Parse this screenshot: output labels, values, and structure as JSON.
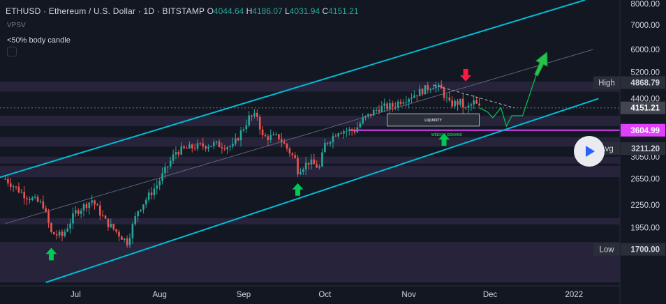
{
  "header": {
    "symbol": "ETHUSD · Ethereum / U.S. Dollar · 1D · BITSTAMP",
    "o_label": "O",
    "o_value": "4044.64",
    "h_label": "H",
    "h_value": "4186.07",
    "l_label": "L",
    "l_value": "4031.94",
    "c_label": "C",
    "c_value": "4151.21"
  },
  "indicator_sub": "VPSV",
  "indicator_name": "<50% body candle",
  "annotations": {
    "liquidity": "LIQUIDITY",
    "weekly_demand": "WEEKLY DEMAND"
  },
  "colors": {
    "background": "#131722",
    "up": "#26a69a",
    "down": "#ef5350",
    "channel": "#00bcd4",
    "magenta": "#e040fb",
    "green_arrow": "#00c853",
    "red_arrow": "#ff1744",
    "zone": "#2a2640"
  },
  "chart_data": {
    "type": "candlestick",
    "timeframe": "1D",
    "ylim": [
      1350,
      8200
    ],
    "log_scale": true,
    "price_axis": {
      "ticks": [
        "8000.00",
        "7000.00",
        "6000.00",
        "5200.00",
        "4400.00",
        "3050.00",
        "2650.00",
        "2250.00",
        "1950.00"
      ],
      "labels": [
        {
          "name": "High",
          "value": "4868.79"
        },
        {
          "name": "",
          "value": "4151.21"
        },
        {
          "name": "",
          "value": "3604.99"
        },
        {
          "name": "Avg",
          "value": "3211.20"
        },
        {
          "name": "Low",
          "value": "1700.00"
        }
      ]
    },
    "time_axis": [
      "Jul",
      "Aug",
      "Sep",
      "Oct",
      "Nov",
      "Dec",
      "2022"
    ],
    "close_path": [
      [
        "2021-06-05",
        2650
      ],
      [
        "2021-06-12",
        2400
      ],
      [
        "2021-06-19",
        2250
      ],
      [
        "2021-06-22",
        1880
      ],
      [
        "2021-06-26",
        1850
      ],
      [
        "2021-07-01",
        2150
      ],
      [
        "2021-07-07",
        2320
      ],
      [
        "2021-07-12",
        2030
      ],
      [
        "2021-07-20",
        1780
      ],
      [
        "2021-07-24",
        2180
      ],
      [
        "2021-07-31",
        2550
      ],
      [
        "2021-08-07",
        3150
      ],
      [
        "2021-08-14",
        3250
      ],
      [
        "2021-08-21",
        3300
      ],
      [
        "2021-08-28",
        3250
      ],
      [
        "2021-09-03",
        3900
      ],
      [
        "2021-09-06",
        3950
      ],
      [
        "2021-09-08",
        3450
      ],
      [
        "2021-09-14",
        3450
      ],
      [
        "2021-09-20",
        3000
      ],
      [
        "2021-09-21",
        2800
      ],
      [
        "2021-09-25",
        2950
      ],
      [
        "2021-09-29",
        2850
      ],
      [
        "2021-10-01",
        3300
      ],
      [
        "2021-10-06",
        3600
      ],
      [
        "2021-10-12",
        3600
      ],
      [
        "2021-10-15",
        3850
      ],
      [
        "2021-10-21",
        4150
      ],
      [
        "2021-10-26",
        4200
      ],
      [
        "2021-10-29",
        4350
      ],
      [
        "2021-11-04",
        4550
      ],
      [
        "2021-11-10",
        4800
      ],
      [
        "2021-11-13",
        4650
      ],
      [
        "2021-11-16",
        4250
      ],
      [
        "2021-11-20",
        4300
      ],
      [
        "2021-11-22",
        4100
      ],
      [
        "2021-11-25",
        4300
      ],
      [
        "2021-11-27",
        4151
      ]
    ],
    "projection": [
      [
        "2021-11-27",
        4151
      ],
      [
        "2021-11-30",
        4050
      ],
      [
        "2021-12-02",
        3900
      ],
      [
        "2021-12-05",
        4150
      ],
      [
        "2021-12-07",
        3700
      ],
      [
        "2021-12-09",
        3950
      ],
      [
        "2021-12-13",
        3950
      ],
      [
        "2021-12-18",
        5100
      ],
      [
        "2021-12-22",
        5900
      ]
    ],
    "channels": [
      {
        "role": "upper",
        "from": [
          "2021-06-01",
          2650
        ],
        "to": [
          "2022-01-05",
          8200
        ]
      },
      {
        "role": "lower",
        "from": [
          "2021-06-20",
          1380
        ],
        "to": [
          "2022-01-10",
          4400
        ]
      },
      {
        "role": "mid",
        "from": [
          "2021-06-05",
          2000
        ],
        "to": [
          "2022-01-08",
          6000
        ]
      }
    ],
    "horizontal_lines": [
      {
        "price": 3604.99,
        "color": "magenta",
        "from": "2021-10-10"
      },
      {
        "price": 4151.21,
        "style": "dashed"
      }
    ],
    "trend_line": {
      "from": [
        "2021-11-10",
        4800
      ],
      "to": [
        "2021-12-10",
        4150
      ]
    },
    "zones": [
      [
        4600,
        4900
      ],
      [
        3700,
        3950
      ],
      [
        3250,
        3450
      ],
      [
        2920,
        3050
      ],
      [
        2680,
        2880
      ],
      [
        1990,
        2070
      ],
      [
        1380,
        1780
      ]
    ],
    "markers": [
      {
        "type": "up-arrow",
        "date": "2021-06-22",
        "price": 1650
      },
      {
        "type": "up-arrow",
        "date": "2021-09-21",
        "price": 2480
      },
      {
        "type": "up-arrow",
        "date": "2021-11-14",
        "price": 3400
      },
      {
        "type": "down-arrow",
        "date": "2021-11-22",
        "price": 5100
      }
    ]
  }
}
